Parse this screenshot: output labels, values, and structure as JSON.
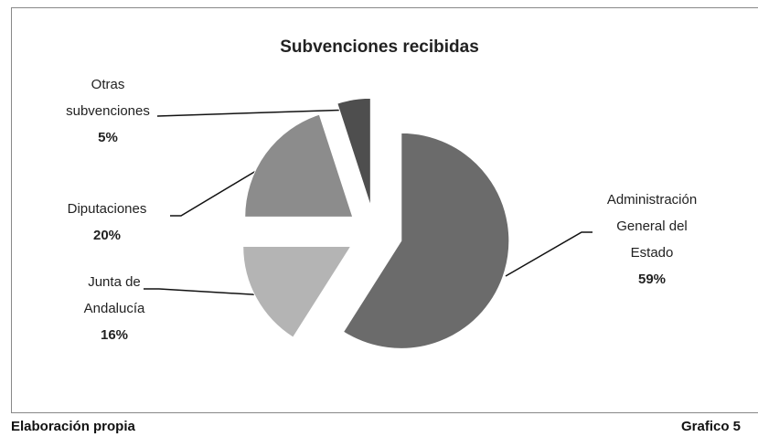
{
  "chart_data": {
    "type": "pie",
    "title": "Subvenciones recibidas",
    "categories": [
      "Administración General del Estado",
      "Junta de Andalucía",
      "Diputaciones",
      "Otras subvenciones"
    ],
    "values": [
      59,
      16,
      20,
      5
    ],
    "value_labels": [
      "59%",
      "16%",
      "20%",
      "5%"
    ],
    "colors": [
      "#6b6b6b",
      "#b4b4b4",
      "#8c8c8c",
      "#4e4e4e"
    ]
  },
  "footer": {
    "left": "Elaboración propia",
    "right": "Grafico 5"
  }
}
